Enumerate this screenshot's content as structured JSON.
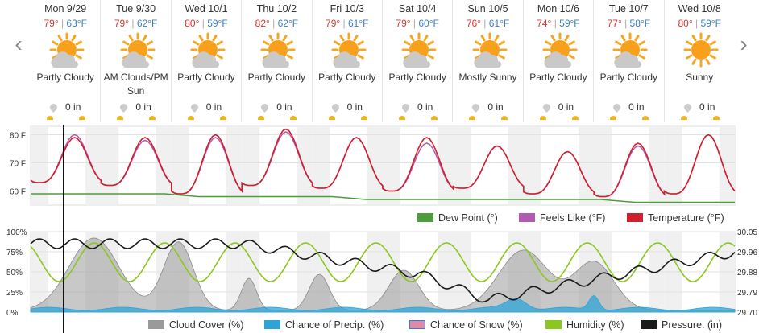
{
  "days": [
    {
      "name": "Mon 9/29",
      "hi": "79°",
      "lo": "63°F",
      "cond": "Partly Cloudy",
      "precip": "0 in",
      "icon": "partly-cloudy-icon"
    },
    {
      "name": "Tue 9/30",
      "hi": "79°",
      "lo": "62°F",
      "cond": "AM Clouds/PM Sun",
      "precip": "0 in",
      "icon": "partly-cloudy-icon"
    },
    {
      "name": "Wed 10/1",
      "hi": "80°",
      "lo": "59°F",
      "cond": "Partly Cloudy",
      "precip": "0 in",
      "icon": "partly-cloudy-icon"
    },
    {
      "name": "Thu 10/2",
      "hi": "82°",
      "lo": "62°F",
      "cond": "Partly Cloudy",
      "precip": "0 in",
      "icon": "partly-cloudy-icon"
    },
    {
      "name": "Fri 10/3",
      "hi": "79°",
      "lo": "61°F",
      "cond": "Partly Cloudy",
      "precip": "0 in",
      "icon": "partly-cloudy-icon"
    },
    {
      "name": "Sat 10/4",
      "hi": "79°",
      "lo": "60°F",
      "cond": "Partly Cloudy",
      "precip": "0 in",
      "icon": "partly-cloudy-icon"
    },
    {
      "name": "Sun 10/5",
      "hi": "76°",
      "lo": "61°F",
      "cond": "Mostly Sunny",
      "precip": "0 in",
      "icon": "partly-cloudy-icon"
    },
    {
      "name": "Mon 10/6",
      "hi": "74°",
      "lo": "59°F",
      "cond": "Partly Cloudy",
      "precip": "0 in",
      "icon": "partly-cloudy-icon"
    },
    {
      "name": "Tue 10/7",
      "hi": "77°",
      "lo": "58°F",
      "cond": "Partly Cloudy",
      "precip": "0 in",
      "icon": "partly-cloudy-icon"
    },
    {
      "name": "Wed 10/8",
      "hi": "80°",
      "lo": "59°F",
      "cond": "Sunny",
      "precip": "0 in",
      "icon": "sun-icon"
    }
  ],
  "nav": {
    "prev": "‹",
    "next": "›"
  },
  "colors": {
    "temperature": "#d0202e",
    "feels_like": "#b05ab0",
    "dew_point": "#4c9e3c",
    "cloud": "#9a9a9a",
    "precip": "#2ea4d6",
    "snow": "#e08aa8",
    "humidity": "#8cc71f",
    "pressure": "#1a1a1a"
  },
  "chart_data": [
    {
      "type": "line",
      "y_ticks": [
        "80 F",
        "70 F",
        "60 F"
      ],
      "ylim": [
        55,
        83
      ],
      "legend_position": "bottom-right",
      "series": [
        {
          "name": "Dew Point (°)",
          "color": "#4c9e3c",
          "values": [
            59,
            59,
            59,
            59,
            59,
            58,
            58,
            58,
            58,
            58,
            57,
            57,
            57,
            57,
            57,
            57,
            57,
            57,
            56,
            56,
            56,
            56
          ]
        },
        {
          "name": "Feels Like (°F)",
          "color": "#b05ab0",
          "peaks": [
            80,
            78,
            79,
            81,
            79,
            77,
            76,
            74,
            76,
            80
          ]
        },
        {
          "name": "Temperature (°F)",
          "color": "#d0202e",
          "highs": [
            79,
            79,
            80,
            82,
            79,
            79,
            76,
            74,
            77,
            80
          ],
          "lows": [
            63,
            62,
            59,
            62,
            61,
            60,
            61,
            59,
            58,
            59
          ]
        }
      ]
    },
    {
      "type": "line",
      "y_ticks_left": [
        "100%",
        "75%",
        "50%",
        "25%",
        "0%"
      ],
      "y_ticks_right": [
        "30.05",
        "29.96",
        "29.88",
        "29.79",
        "29.70"
      ],
      "legend_position": "bottom",
      "series": [
        {
          "name": "Cloud Cover (%)",
          "color": "#9a9a9a"
        },
        {
          "name": "Chance of Precip. (%)",
          "color": "#2ea4d6"
        },
        {
          "name": "Chance of Snow (%)",
          "color": "#e08aa8"
        },
        {
          "name": "Humidity (%)",
          "color": "#8cc71f"
        },
        {
          "name": "Pressure. (in)",
          "color": "#1a1a1a"
        }
      ]
    }
  ],
  "legend1": [
    "Dew Point (°)",
    "Feels Like (°F)",
    "Temperature (°F)"
  ],
  "legend2": [
    "Cloud Cover (%)",
    "Chance of Precip. (%)",
    "Chance of Snow (%)",
    "Humidity (%)",
    "Pressure. (in)"
  ]
}
